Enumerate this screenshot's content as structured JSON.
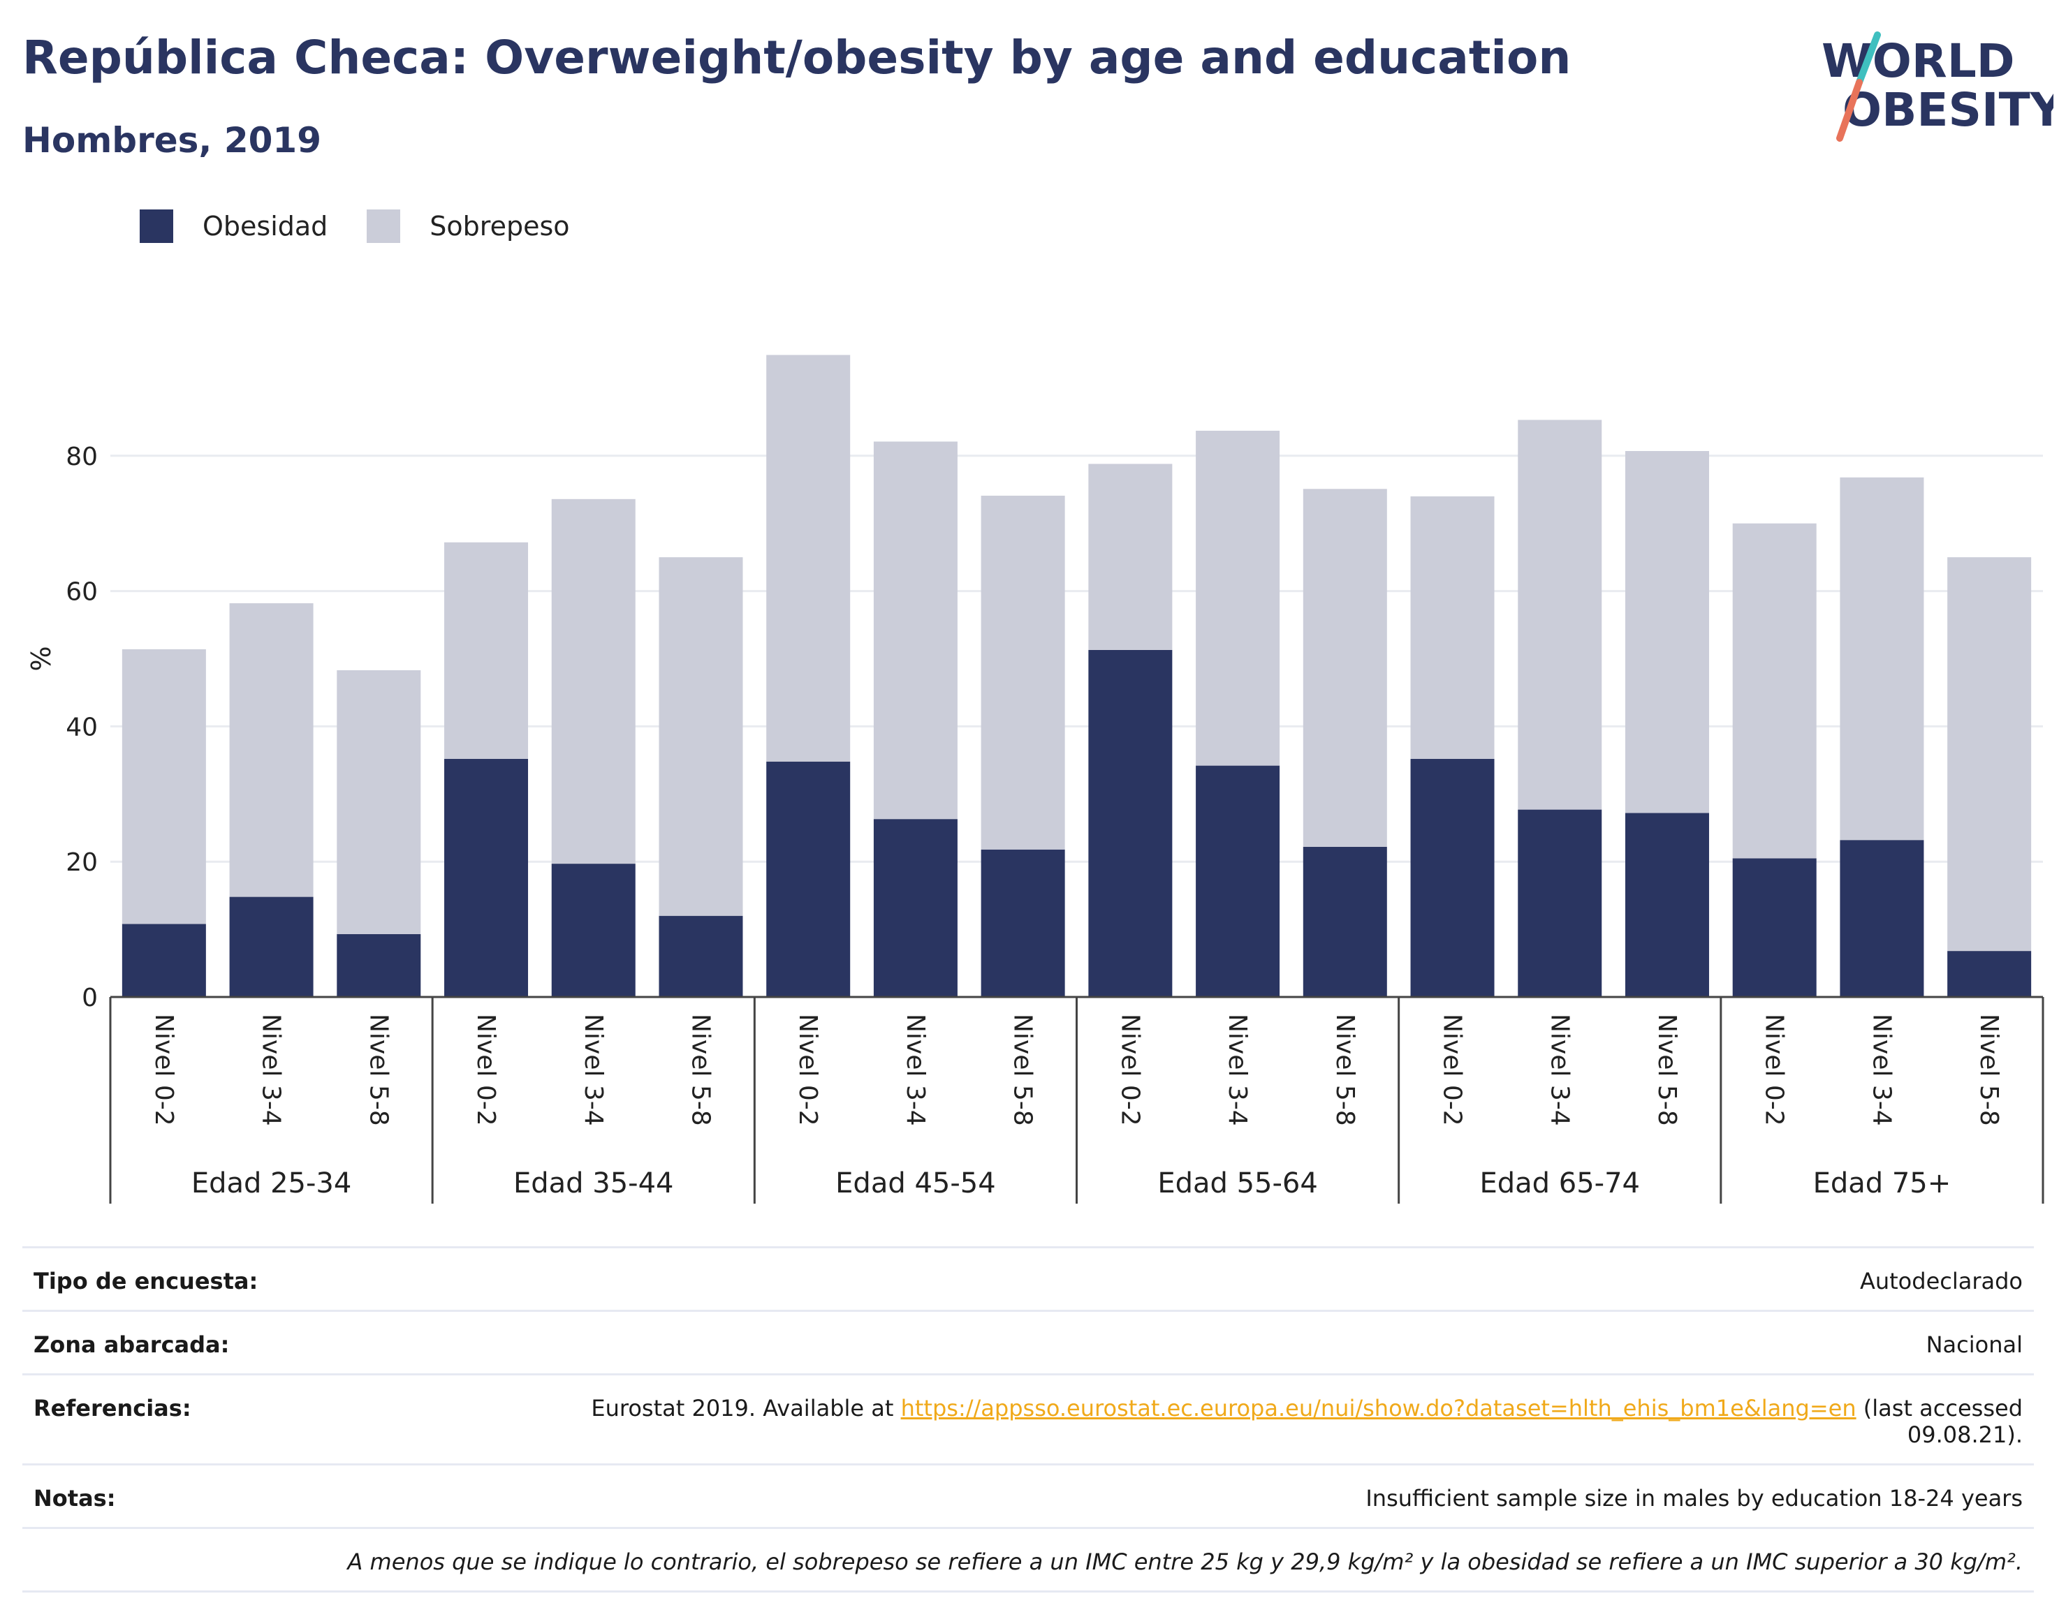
{
  "header": {
    "title": "República Checa: Overweight/obesity by age and education",
    "subtitle": "Hombres, 2019"
  },
  "logo": {
    "line1": "WORLD",
    "line2": "OBESITY",
    "accent_colors": [
      "#3fbfbf",
      "#e8735a"
    ]
  },
  "colors": {
    "obesity": "#2a3561",
    "overweight": "#cbcdd9",
    "title": "#2a3561",
    "link": "#f0a91a"
  },
  "chart_data": {
    "type": "bar",
    "stacked": true,
    "ylabel": "%",
    "ylim": [
      0,
      100
    ],
    "yticks": [
      0,
      20,
      40,
      60,
      80
    ],
    "grid": true,
    "legend": "top-left",
    "groups": [
      "Edad 25-34",
      "Edad 35-44",
      "Edad 45-54",
      "Edad 55-64",
      "Edad 65-74",
      "Edad 75+"
    ],
    "levels": [
      "Nivel 0-2",
      "Nivel 3-4",
      "Nivel 5-8"
    ],
    "series": [
      {
        "name": "Obesidad",
        "values": [
          10.8,
          14.8,
          9.3,
          35.2,
          19.7,
          12.0,
          34.8,
          26.3,
          21.8,
          51.3,
          34.2,
          22.2,
          35.2,
          27.7,
          27.2,
          20.5,
          23.2,
          6.8
        ]
      },
      {
        "name": "Sobrepeso",
        "values": [
          40.6,
          43.4,
          39.0,
          32.0,
          53.9,
          53.0,
          60.1,
          55.8,
          52.3,
          27.5,
          49.5,
          52.9,
          38.8,
          57.6,
          53.5,
          49.5,
          53.6,
          58.2
        ]
      }
    ]
  },
  "info": {
    "rows": [
      {
        "label": "Tipo de encuesta:",
        "value": "Autodeclarado"
      },
      {
        "label": "Zona abarcada:",
        "value": "Nacional"
      },
      {
        "label": "Referencias:",
        "value_prefix": "Eurostat 2019. Available at ",
        "link": "https://appsso.eurostat.ec.europa.eu/nui/show.do?dataset=hlth_ehis_bm1e&lang=en",
        "value_suffix": " (last accessed 09.08.21)."
      },
      {
        "label": "Notas:",
        "value": "Insufficient sample size in males by education 18-24 years"
      },
      {
        "label": "",
        "value": "A menos que se indique lo contrario, el sobrepeso se refiere a un IMC entre 25 kg y 29,9 kg/m² y la obesidad se refiere a un IMC superior a 30 kg/m²."
      }
    ]
  }
}
